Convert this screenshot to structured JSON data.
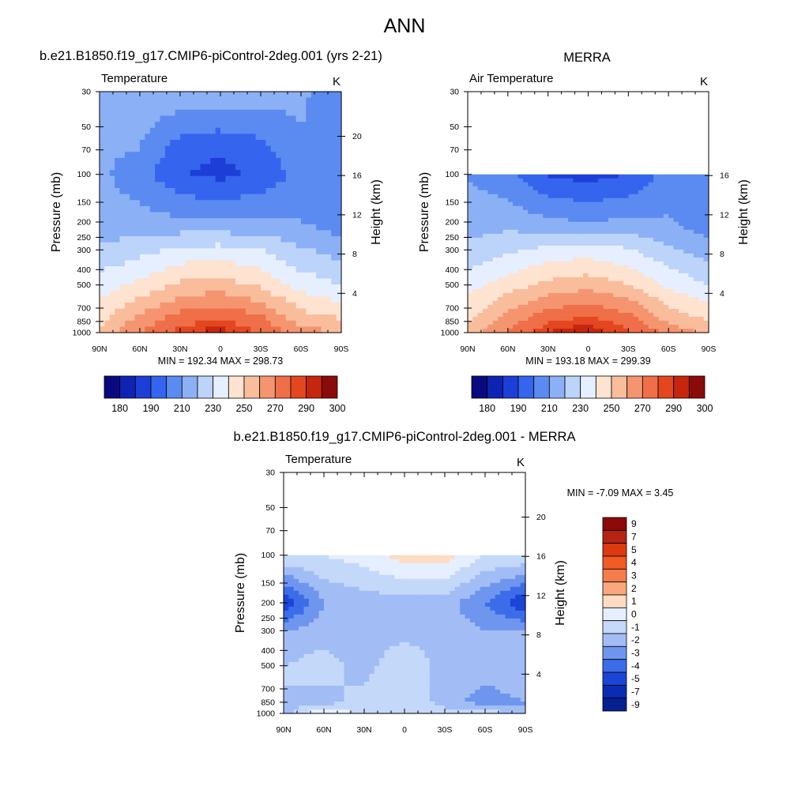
{
  "figure_title": "ANN",
  "chart_data": [
    {
      "type": "heatmap",
      "panel": "model",
      "title": "b.e21.B1850.f19_g17.CMIP6-piControl-2deg.001 (yrs 2-21)",
      "left_label": "Temperature",
      "units": "K",
      "xlabel": "",
      "ylabel": "Pressure (mb)",
      "y2label": "Height (km)",
      "x_ticks": [
        "90N",
        "60N",
        "30N",
        "0",
        "30S",
        "60S",
        "90S"
      ],
      "y_ticks": [
        "30",
        "50",
        "70",
        "100",
        "150",
        "200",
        "250",
        "300",
        "400",
        "500",
        "700",
        "850",
        "1000"
      ],
      "y2_ticks": [
        "20",
        "16",
        "12",
        "8",
        "4"
      ],
      "ylim": [
        1000,
        30
      ],
      "stats": "MIN = 192.34  MAX = 298.73",
      "min": 192.34,
      "max": 298.73,
      "colorbar_labels": [
        "180",
        "190",
        "210",
        "230",
        "250",
        "270",
        "290",
        "300"
      ],
      "zonal_profile": [
        {
          "pressure": 30,
          "values": [
            222,
            226,
            228,
            228,
            226,
            222,
            212
          ]
        },
        {
          "pressure": 70,
          "values": [
            222,
            220,
            204,
            201,
            206,
            219,
            213
          ]
        },
        {
          "pressure": 100,
          "values": [
            222,
            214,
            201,
            197,
            202,
            214,
            213
          ]
        },
        {
          "pressure": 200,
          "values": [
            225,
            224,
            222,
            221,
            222,
            220,
            214
          ]
        },
        {
          "pressure": 300,
          "values": [
            231,
            236,
            242,
            244,
            240,
            231,
            226
          ]
        },
        {
          "pressure": 500,
          "values": [
            245,
            253,
            262,
            265,
            258,
            246,
            240
          ]
        },
        {
          "pressure": 850,
          "values": [
            258,
            274,
            287,
            292,
            284,
            266,
            262
          ]
        },
        {
          "pressure": 1000,
          "values": [
            262,
            280,
            294,
            298,
            290,
            275,
            270
          ]
        }
      ]
    },
    {
      "type": "heatmap",
      "panel": "obs",
      "title": "MERRA",
      "left_label": "Air Temperature",
      "units": "K",
      "xlabel": "",
      "ylabel": "Pressure (mb)",
      "y2label": "Height (km)",
      "x_ticks": [
        "90N",
        "60N",
        "30N",
        "0",
        "30S",
        "60S",
        "90S"
      ],
      "y_ticks": [
        "30",
        "50",
        "70",
        "100",
        "150",
        "200",
        "250",
        "300",
        "400",
        "500",
        "700",
        "850",
        "1000"
      ],
      "y2_ticks": [
        "16",
        "12",
        "8",
        "4"
      ],
      "ylim": [
        1000,
        30
      ],
      "data_top_pressure": 100,
      "stats": "MIN = 193.18  MAX = 299.39",
      "min": 193.18,
      "max": 299.39,
      "colorbar_labels": [
        "180",
        "190",
        "210",
        "230",
        "250",
        "270",
        "290",
        "300"
      ],
      "zonal_profile": [
        {
          "pressure": 100,
          "values": [
            219,
            214,
            199,
            196,
            200,
            214,
            212
          ]
        },
        {
          "pressure": 200,
          "values": [
            226,
            226,
            222,
            220,
            222,
            221,
            213
          ]
        },
        {
          "pressure": 300,
          "values": [
            232,
            238,
            243,
            245,
            241,
            232,
            225
          ]
        },
        {
          "pressure": 500,
          "values": [
            246,
            255,
            263,
            266,
            260,
            248,
            240
          ]
        },
        {
          "pressure": 850,
          "values": [
            259,
            276,
            289,
            294,
            286,
            268,
            260
          ]
        },
        {
          "pressure": 1000,
          "values": [
            263,
            282,
            296,
            299,
            292,
            277,
            268
          ]
        }
      ]
    },
    {
      "type": "heatmap",
      "panel": "difference",
      "title": "b.e21.B1850.f19_g17.CMIP6-piControl-2deg.001 - MERRA",
      "left_label": "Temperature",
      "units": "K",
      "xlabel": "",
      "ylabel": "Pressure (mb)",
      "y2label": "Height (km)",
      "x_ticks": [
        "90N",
        "60N",
        "30N",
        "0",
        "30S",
        "60S",
        "90S"
      ],
      "y_ticks": [
        "30",
        "50",
        "70",
        "100",
        "150",
        "200",
        "250",
        "300",
        "400",
        "500",
        "700",
        "850",
        "1000"
      ],
      "y2_ticks": [
        "20",
        "16",
        "12",
        "8",
        "4"
      ],
      "ylim": [
        1000,
        30
      ],
      "data_top_pressure": 100,
      "stats": "MIN =  -7.09  MAX =   3.45",
      "min": -7.09,
      "max": 3.45,
      "colorbar_labels": [
        "9",
        "7",
        "5",
        "4",
        "3",
        "2",
        "1",
        "0",
        "-1",
        "-2",
        "-3",
        "-4",
        "-5",
        "-7",
        "-9"
      ],
      "zonal_profile": [
        {
          "pressure": 100,
          "values": [
            -1,
            -1,
            -0.5,
            0.5,
            0.5,
            -1,
            -1
          ]
        },
        {
          "pressure": 200,
          "values": [
            -6,
            -3,
            -2.5,
            -2.5,
            -2.5,
            -4,
            -6
          ]
        },
        {
          "pressure": 300,
          "values": [
            -3,
            -2.5,
            -2.5,
            -2.5,
            -2.5,
            -3,
            -3
          ]
        },
        {
          "pressure": 500,
          "values": [
            -2,
            -1.5,
            -2.5,
            -1,
            -2.5,
            -2.5,
            -2
          ]
        },
        {
          "pressure": 850,
          "values": [
            -2,
            -2.5,
            -1.5,
            -1,
            -2.5,
            -3.5,
            -3
          ]
        },
        {
          "pressure": 1000,
          "values": [
            -3,
            0.5,
            -1.5,
            -1.5,
            -1.5,
            -1,
            -3
          ]
        }
      ]
    }
  ],
  "palettes": {
    "temperature": [
      "#0a0a80",
      "#0f23b3",
      "#1e3ed8",
      "#3565ee",
      "#5b8bf0",
      "#8bb0f5",
      "#bcd3fa",
      "#e6efff",
      "#fde3d0",
      "#f9bd9c",
      "#f59570",
      "#ef6f48",
      "#e44620",
      "#c6260e",
      "#8b0a0a"
    ],
    "difference": [
      "#8b0a0a",
      "#b62313",
      "#dd3a12",
      "#f25a26",
      "#f47d4c",
      "#f8a87c",
      "#fddcc3",
      "#e6efff",
      "#c4d8fa",
      "#a2bdf5",
      "#6e96ef",
      "#3d6ce8",
      "#1b45d7",
      "#0a2cb4",
      "#06208f"
    ]
  }
}
